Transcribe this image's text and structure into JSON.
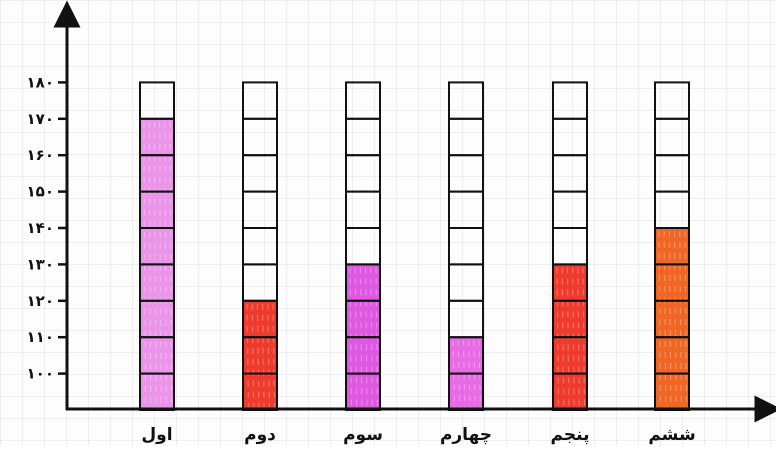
{
  "chart_data": {
    "type": "bar",
    "title": "",
    "xlabel": "",
    "ylabel": "",
    "ylim": [
      90,
      180
    ],
    "yticks": [
      100,
      110,
      120,
      130,
      140,
      150,
      160,
      170,
      180
    ],
    "ytick_labels": [
      "۱۰۰",
      "۱۱۰",
      "۱۲۰",
      "۱۳۰",
      "۱۴۰",
      "۱۵۰",
      "۱۶۰",
      "۱۷۰",
      "۱۸۰"
    ],
    "categories": [
      "اول",
      "دوم",
      "سوم",
      "چهارم",
      "پنجم",
      "ششم"
    ],
    "values": [
      170,
      120,
      130,
      110,
      130,
      140
    ],
    "bar_colors": [
      "#e98ce8",
      "#ee2a1c",
      "#dc4ae0",
      "#e55ee3",
      "#ee2a1c",
      "#ef5a12"
    ],
    "cell_outline_color": "#111111",
    "grid": true
  }
}
